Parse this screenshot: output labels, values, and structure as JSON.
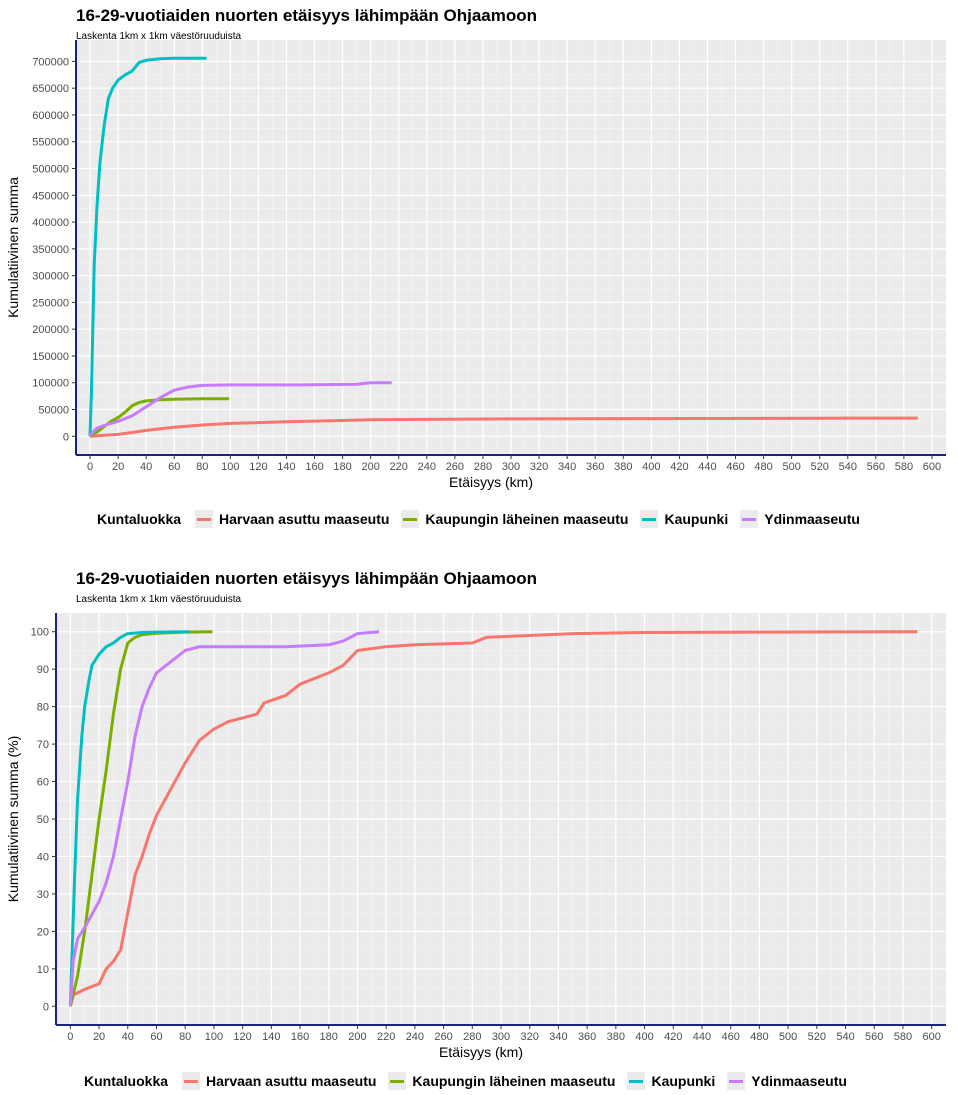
{
  "chart_data": [
    {
      "type": "line",
      "title": "16-29-vuotiaiden nuorten etäisyys lähimpään Ohjaamoon",
      "subtitle": "Laskenta 1km x 1km väestöruuduista",
      "xlabel": "Etäisyys (km)",
      "ylabel": "Kumulatiivinen summa",
      "xlim": [
        -10,
        610
      ],
      "ylim": [
        -35000,
        740000
      ],
      "xticks": [
        "0",
        "20",
        "40",
        "60",
        "80",
        "100",
        "120",
        "140",
        "160",
        "180",
        "200",
        "220",
        "240",
        "260",
        "280",
        "300",
        "320",
        "340",
        "360",
        "380",
        "400",
        "420",
        "440",
        "460",
        "480",
        "500",
        "520",
        "540",
        "560",
        "580",
        "600"
      ],
      "yticks": [
        "0",
        "50000",
        "100000",
        "150000",
        "200000",
        "250000",
        "300000",
        "350000",
        "400000",
        "450000",
        "500000",
        "550000",
        "600000",
        "650000",
        "700000"
      ],
      "grid": true,
      "legend": {
        "title": "Kuntaluokka",
        "position": "bottom",
        "items": [
          "Harvaan asuttu maaseutu",
          "Kaupungin läheinen maaseutu",
          "Kaupunki",
          "Ydinmaaseutu"
        ]
      },
      "series": [
        {
          "name": "Harvaan asuttu maaseutu",
          "color": "#F8766D",
          "points": [
            [
              0,
              0
            ],
            [
              10,
              2000
            ],
            [
              20,
              3500
            ],
            [
              30,
              7000
            ],
            [
              40,
              11000
            ],
            [
              60,
              17000
            ],
            [
              80,
              21000
            ],
            [
              100,
              24000
            ],
            [
              140,
              27000
            ],
            [
              180,
              29500
            ],
            [
              200,
              31000
            ],
            [
              300,
              32500
            ],
            [
              400,
              33000
            ],
            [
              520,
              33500
            ],
            [
              540,
              34000
            ],
            [
              590,
              34000
            ]
          ]
        },
        {
          "name": "Kaupungin läheinen maaseutu",
          "color": "#7CAE00",
          "points": [
            [
              0,
              0
            ],
            [
              5,
              8000
            ],
            [
              10,
              18000
            ],
            [
              15,
              28000
            ],
            [
              20,
              35000
            ],
            [
              25,
              45000
            ],
            [
              30,
              57000
            ],
            [
              35,
              63000
            ],
            [
              40,
              66000
            ],
            [
              50,
              68000
            ],
            [
              60,
              69000
            ],
            [
              80,
              70000
            ],
            [
              99,
              70000
            ]
          ]
        },
        {
          "name": "Kaupunki",
          "color": "#00BFC4",
          "points": [
            [
              0,
              0
            ],
            [
              1,
              80000
            ],
            [
              2,
              200000
            ],
            [
              3,
              320000
            ],
            [
              5,
              430000
            ],
            [
              7,
              510000
            ],
            [
              10,
              580000
            ],
            [
              13,
              630000
            ],
            [
              16,
              650000
            ],
            [
              20,
              665000
            ],
            [
              25,
              675000
            ],
            [
              30,
              682000
            ],
            [
              35,
              698000
            ],
            [
              40,
              702000
            ],
            [
              50,
              705000
            ],
            [
              60,
              706000
            ],
            [
              83,
              706000
            ]
          ]
        },
        {
          "name": "Ydinmaaseutu",
          "color": "#C77CFF",
          "points": [
            [
              0,
              0
            ],
            [
              2,
              8000
            ],
            [
              5,
              15000
            ],
            [
              10,
              20000
            ],
            [
              20,
              28000
            ],
            [
              30,
              38000
            ],
            [
              40,
              55000
            ],
            [
              50,
              72000
            ],
            [
              60,
              86000
            ],
            [
              70,
              92000
            ],
            [
              80,
              95000
            ],
            [
              100,
              96000
            ],
            [
              150,
              96000
            ],
            [
              190,
              97000
            ],
            [
              200,
              100000
            ],
            [
              215,
              100000
            ]
          ]
        }
      ]
    },
    {
      "type": "line",
      "title": "16-29-vuotiaiden nuorten etäisyys lähimpään Ohjaamoon",
      "subtitle": "Laskenta 1km x 1km väestöruuduista",
      "xlabel": "Etäisyys (km)",
      "ylabel": "Kumulatiivinen summa (%)",
      "xlim": [
        -10,
        610
      ],
      "ylim": [
        -5,
        105
      ],
      "xticks": [
        "0",
        "20",
        "40",
        "60",
        "80",
        "100",
        "120",
        "140",
        "160",
        "180",
        "200",
        "220",
        "240",
        "260",
        "280",
        "300",
        "320",
        "340",
        "360",
        "380",
        "400",
        "420",
        "440",
        "460",
        "480",
        "500",
        "520",
        "540",
        "560",
        "580",
        "600"
      ],
      "yticks": [
        "0",
        "10",
        "20",
        "30",
        "40",
        "50",
        "60",
        "70",
        "80",
        "90",
        "100"
      ],
      "grid": true,
      "legend": {
        "title": "Kuntaluokka",
        "position": "bottom",
        "items": [
          "Harvaan asuttu maaseutu",
          "Kaupungin läheinen maaseutu",
          "Kaupunki",
          "Ydinmaaseutu"
        ]
      },
      "series": [
        {
          "name": "Harvaan asuttu maaseutu",
          "color": "#F8766D",
          "points": [
            [
              0,
              0
            ],
            [
              2,
              3
            ],
            [
              10,
              4.5
            ],
            [
              20,
              6
            ],
            [
              25,
              10
            ],
            [
              30,
              12
            ],
            [
              35,
              15
            ],
            [
              40,
              25
            ],
            [
              45,
              35
            ],
            [
              50,
              40
            ],
            [
              55,
              46
            ],
            [
              60,
              51
            ],
            [
              70,
              58
            ],
            [
              80,
              65
            ],
            [
              90,
              71
            ],
            [
              100,
              74
            ],
            [
              110,
              76
            ],
            [
              120,
              77
            ],
            [
              130,
              78
            ],
            [
              135,
              81
            ],
            [
              150,
              83
            ],
            [
              160,
              86
            ],
            [
              180,
              89
            ],
            [
              190,
              91
            ],
            [
              200,
              95
            ],
            [
              220,
              96
            ],
            [
              240,
              96.5
            ],
            [
              280,
              97
            ],
            [
              290,
              98.5
            ],
            [
              320,
              99
            ],
            [
              350,
              99.5
            ],
            [
              400,
              99.8
            ],
            [
              590,
              100
            ]
          ]
        },
        {
          "name": "Kaupungin läheinen maaseutu",
          "color": "#7CAE00",
          "points": [
            [
              0,
              0
            ],
            [
              5,
              8
            ],
            [
              10,
              20
            ],
            [
              15,
              35
            ],
            [
              20,
              50
            ],
            [
              25,
              63
            ],
            [
              30,
              78
            ],
            [
              35,
              90
            ],
            [
              40,
              97
            ],
            [
              45,
              98.5
            ],
            [
              50,
              99.2
            ],
            [
              60,
              99.6
            ],
            [
              80,
              99.9
            ],
            [
              99,
              100
            ]
          ]
        },
        {
          "name": "Kaupunki",
          "color": "#00BFC4",
          "points": [
            [
              0,
              0
            ],
            [
              1,
              12
            ],
            [
              3,
              35
            ],
            [
              5,
              55
            ],
            [
              8,
              72
            ],
            [
              10,
              80
            ],
            [
              13,
              87
            ],
            [
              15,
              91
            ],
            [
              20,
              94
            ],
            [
              25,
              96
            ],
            [
              30,
              97
            ],
            [
              35,
              98.5
            ],
            [
              40,
              99.5
            ],
            [
              50,
              99.8
            ],
            [
              60,
              99.9
            ],
            [
              83,
              100
            ]
          ]
        },
        {
          "name": "Ydinmaaseutu",
          "color": "#C77CFF",
          "points": [
            [
              0,
              0
            ],
            [
              2,
              12
            ],
            [
              5,
              18
            ],
            [
              10,
              21
            ],
            [
              20,
              28
            ],
            [
              25,
              33
            ],
            [
              30,
              40
            ],
            [
              35,
              50
            ],
            [
              40,
              60
            ],
            [
              45,
              72
            ],
            [
              50,
              80
            ],
            [
              55,
              85
            ],
            [
              60,
              89
            ],
            [
              70,
              92
            ],
            [
              80,
              95
            ],
            [
              90,
              96
            ],
            [
              150,
              96
            ],
            [
              180,
              96.5
            ],
            [
              190,
              97.5
            ],
            [
              200,
              99.5
            ],
            [
              215,
              100
            ]
          ]
        }
      ]
    }
  ]
}
